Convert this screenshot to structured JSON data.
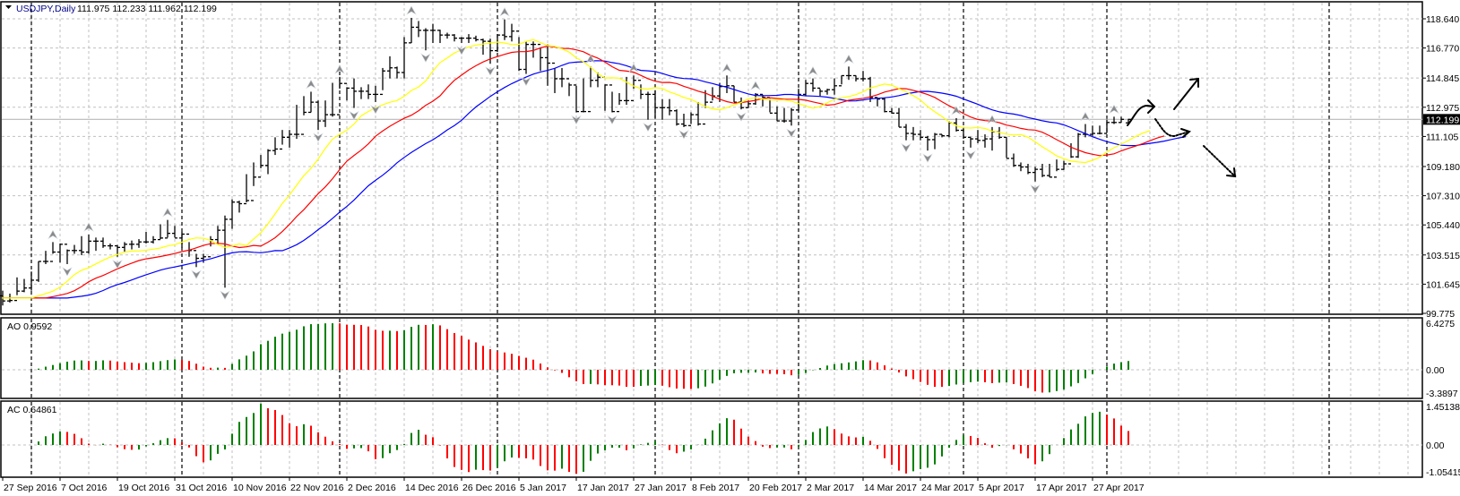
{
  "header": {
    "symbol": "USDJPY,Daily",
    "ohlc": "111.975 112.233 111.962 112.199",
    "menu_icon": "triangle-down-icon"
  },
  "colors": {
    "bars": "#000000",
    "lips": "#ffff00",
    "teeth": "#ff0000",
    "jaw": "#0000ff",
    "up": "#008000",
    "down": "#ff0000",
    "grid": "#c0c0c0",
    "fractal": "#8a8a8a"
  },
  "chart_data": {
    "type": "ohlc",
    "symbol": "USDJPY",
    "timeframe": "Daily",
    "last": {
      "open": 111.975,
      "high": 112.233,
      "low": 111.962,
      "close": 112.199
    },
    "current_price_label": "112.199",
    "price_ticks": [
      "118.640",
      "116.770",
      "114.845",
      "112.975",
      "111.105",
      "109.180",
      "107.310",
      "105.440",
      "103.515",
      "101.645",
      "99.775"
    ],
    "ylim": [
      99.775,
      118.64
    ],
    "date_labels": [
      "27 Sep 2016",
      "7 Oct 2016",
      "19 Oct 2016",
      "31 Oct 2016",
      "10 Nov 2016",
      "22 Nov 2016",
      "2 Dec 2016",
      "14 Dec 2016",
      "26 Dec 2016",
      "5 Jan 2017",
      "17 Jan 2017",
      "27 Jan 2017",
      "8 Feb 2017",
      "20 Feb 2017",
      "2 Mar 2017",
      "14 Mar 2017",
      "24 Mar 2017",
      "5 Apr 2017",
      "17 Apr 2017",
      "27 Apr 2017"
    ],
    "date_label_every_bars": 8,
    "month_separator_bars": [
      4,
      25,
      47,
      69,
      91,
      111,
      134,
      154,
      185
    ],
    "close": [
      100.57,
      100.6,
      101.2,
      101.4,
      101.9,
      103.1,
      103.1,
      103.7,
      104.2,
      103.8,
      103.8,
      103.7,
      104.4,
      104.4,
      104.1,
      104.1,
      104.0,
      104.2,
      104.2,
      104.35,
      104.35,
      104.5,
      104.6,
      104.9,
      104.6,
      104.85,
      103.8,
      103.3,
      103.4,
      104.5,
      105.1,
      105.8,
      106.9,
      106.8,
      107.0,
      108.5,
      109.25,
      110.2,
      110.3,
      111.05,
      111.24,
      111.24,
      112.65,
      113.3,
      112.1,
      112.5,
      112.5,
      114.5,
      114.2,
      114.0,
      114.0,
      113.8,
      113.8,
      115.3,
      115.5,
      115.2,
      117.1,
      118.1,
      117.9,
      117.9,
      117.9,
      117.6,
      117.6,
      117.4,
      117.4,
      117.4,
      117.3,
      117.2,
      116.6,
      117.6,
      117.5,
      117.85,
      115.4,
      117.0,
      117.0,
      116.15,
      115.8,
      114.8,
      114.8,
      114.4,
      112.7,
      112.7,
      114.7,
      114.9,
      114.4,
      112.7,
      113.4,
      113.4,
      114.7,
      113.8,
      113.8,
      112.95,
      112.95,
      112.75,
      111.9,
      111.8,
      112.5,
      111.9,
      113.3,
      113.7,
      114.3,
      114.35,
      113.3,
      112.95,
      113.2,
      113.8,
      113.6,
      112.6,
      112.1,
      112.1,
      112.8,
      113.8,
      114.5,
      114.2,
      114.0,
      114.1,
      114.35,
      115.0,
      115.0,
      114.8,
      114.8,
      113.6,
      113.5,
      112.7,
      112.6,
      111.7,
      111.3,
      111.24,
      111.05,
      110.9,
      111.24,
      111.15,
      111.97,
      111.5,
      111.05,
      110.95,
      110.85,
      110.95,
      111.4,
      111.05,
      109.7,
      109.25,
      109.15,
      108.8,
      109.0,
      108.6,
      108.5,
      109.0,
      109.35,
      109.8,
      111.24,
      111.24,
      111.3,
      111.3,
      112.0,
      112.0,
      112.2,
      112.199
    ],
    "high": [
      101.23,
      101.04,
      102.08,
      101.98,
      102.45,
      103.11,
      103.78,
      104.34,
      104.25,
      103.87,
      104.16,
      104.72,
      104.82,
      104.63,
      104.63,
      104.25,
      104.16,
      104.34,
      104.44,
      104.53,
      105.0,
      104.72,
      105.48,
      105.76,
      105.38,
      105.0,
      104.34,
      103.59,
      103.59,
      104.72,
      105.38,
      106.04,
      107.08,
      106.99,
      108.69,
      109.44,
      109.92,
      110.29,
      111.05,
      111.52,
      111.52,
      113.13,
      113.69,
      113.97,
      113.41,
      113.41,
      114.54,
      114.92,
      114.26,
      114.82,
      114.26,
      114.44,
      114.35,
      115.49,
      116.24,
      115.58,
      117.47,
      118.7,
      118.5,
      118.04,
      118.32,
      117.94,
      117.75,
      117.66,
      117.47,
      117.66,
      117.56,
      117.37,
      117.37,
      117.66,
      118.6,
      118.32,
      117.47,
      117.19,
      117.19,
      116.81,
      117.0,
      115.49,
      115.49,
      114.54,
      114.35,
      114.82,
      115.58,
      115.2,
      114.44,
      113.97,
      113.88,
      114.92,
      115.01,
      114.44,
      113.97,
      114.07,
      113.5,
      113.5,
      112.84,
      112.56,
      112.65,
      113.31,
      114.07,
      114.26,
      114.54,
      115.01,
      114.35,
      113.6,
      113.41,
      113.88,
      113.78,
      113.5,
      113.03,
      112.93,
      112.93,
      114.16,
      114.73,
      114.82,
      114.16,
      114.16,
      114.82,
      115.01,
      115.58,
      115.01,
      115.3,
      114.92,
      113.6,
      113.6,
      112.93,
      112.93,
      111.9,
      111.71,
      111.52,
      111.14,
      111.33,
      111.24,
      112.09,
      112.28,
      111.71,
      111.05,
      111.52,
      111.24,
      111.71,
      111.71,
      111.05,
      110.01,
      109.44,
      109.35,
      109.16,
      109.35,
      109.35,
      109.63,
      109.54,
      110.67,
      111.33,
      111.9,
      111.8,
      111.8,
      112.18,
      112.37,
      112.37,
      112.233
    ],
    "low": [
      100.28,
      100.47,
      100.94,
      101.13,
      101.23,
      101.79,
      102.93,
      103.59,
      103.03,
      102.93,
      103.59,
      103.5,
      103.59,
      103.78,
      103.97,
      103.87,
      103.4,
      103.68,
      103.87,
      103.97,
      104.25,
      104.25,
      104.53,
      104.63,
      104.63,
      103.97,
      103.4,
      102.74,
      103.02,
      104.06,
      104.16,
      101.42,
      105.19,
      106.23,
      106.89,
      107.93,
      109.07,
      108.69,
      109.92,
      110.58,
      110.39,
      110.95,
      112.46,
      112.65,
      111.52,
      111.71,
      112.37,
      114.16,
      113.41,
      112.93,
      113.5,
      113.5,
      113.31,
      114.07,
      114.82,
      114.82,
      114.82,
      117.09,
      117.47,
      116.62,
      117.09,
      117.09,
      117.37,
      117.19,
      117.09,
      117.09,
      117.19,
      116.34,
      115.77,
      116.52,
      117.28,
      117.19,
      115.3,
      115.11,
      116.15,
      115.3,
      114.35,
      113.88,
      114.26,
      113.69,
      112.65,
      112.65,
      114.26,
      114.26,
      112.75,
      112.65,
      113.13,
      113.13,
      114.16,
      113.5,
      112.18,
      112.28,
      112.18,
      112.46,
      111.8,
      111.71,
      111.9,
      111.8,
      112.93,
      113.41,
      113.31,
      113.88,
      113.31,
      112.84,
      112.93,
      113.13,
      113.03,
      112.65,
      112.09,
      111.99,
      111.8,
      112.75,
      113.69,
      113.97,
      113.69,
      113.78,
      113.78,
      114.44,
      114.73,
      114.63,
      114.63,
      113.31,
      113.03,
      112.65,
      112.56,
      111.71,
      110.86,
      110.86,
      110.86,
      110.2,
      110.29,
      111.05,
      111.05,
      111.42,
      110.95,
      110.39,
      110.67,
      110.39,
      110.2,
      110.95,
      109.73,
      109.16,
      108.88,
      108.69,
      108.22,
      108.5,
      108.5,
      108.88,
      108.97,
      109.73,
      109.73,
      111.05,
      111.14,
      111.24,
      111.33,
      111.9,
      111.99,
      111.962
    ],
    "indicators": {
      "alligator": {
        "jaw": {
          "period": 13,
          "shift": 8
        },
        "teeth": {
          "period": 8,
          "shift": 5
        },
        "lips": {
          "period": 5,
          "shift": 3
        }
      },
      "fractals": true,
      "ao": {
        "label": "AO 0.9592",
        "ticks": [
          "6.4275",
          "0.00",
          "-3.3897"
        ],
        "ylim": [
          -3.3897,
          6.4275
        ]
      },
      "ac": {
        "label": "AC 0.64861",
        "ticks": [
          "1.45138",
          "0.00",
          "-1.05415"
        ],
        "ylim": [
          -1.05415,
          1.45138
        ]
      }
    },
    "annotations": [
      "up-curved-arrow",
      "up-arrow",
      "dotted-sideways-arrow",
      "dotted-down-arrow"
    ]
  }
}
